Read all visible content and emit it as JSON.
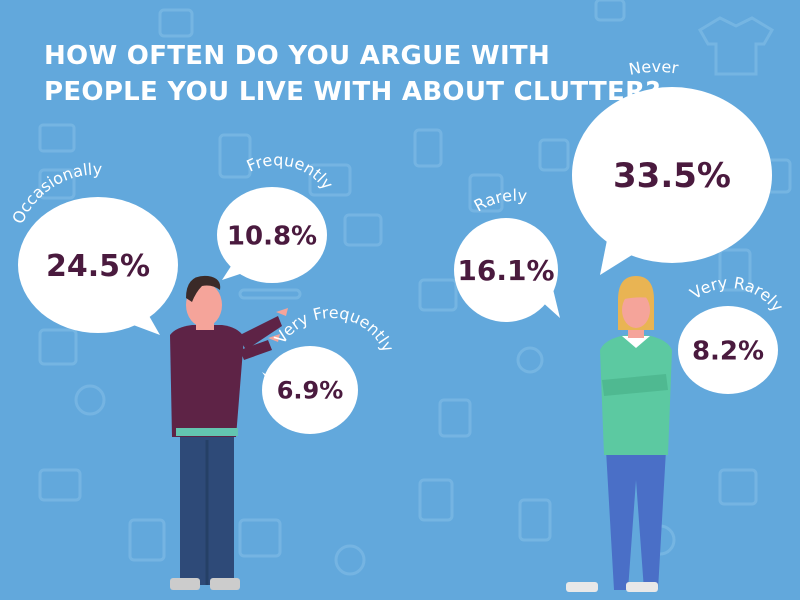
{
  "title": {
    "line1": "HOW OFTEN DO YOU ARGUE WITH",
    "line2": "PEOPLE YOU LIVE WITH ABOUT CLUTTER?"
  },
  "colors": {
    "background": "#62a8dc",
    "bubble": "#ffffff",
    "value_text": "#4a1a3e",
    "label_text": "#ffffff"
  },
  "chart_data": {
    "type": "pie",
    "title": "HOW OFTEN DO YOU ARGUE WITH PEOPLE YOU LIVE WITH ABOUT CLUTTER?",
    "categories": [
      "Occasionally",
      "Frequently",
      "Very Frequently",
      "Never",
      "Rarely",
      "Very Rarely"
    ],
    "values": [
      24.5,
      10.8,
      6.9,
      33.5,
      16.1,
      8.2
    ],
    "value_labels": [
      "24.5%",
      "10.8%",
      "6.9%",
      "33.5%",
      "16.1%",
      "8.2%"
    ],
    "unit": "%"
  }
}
